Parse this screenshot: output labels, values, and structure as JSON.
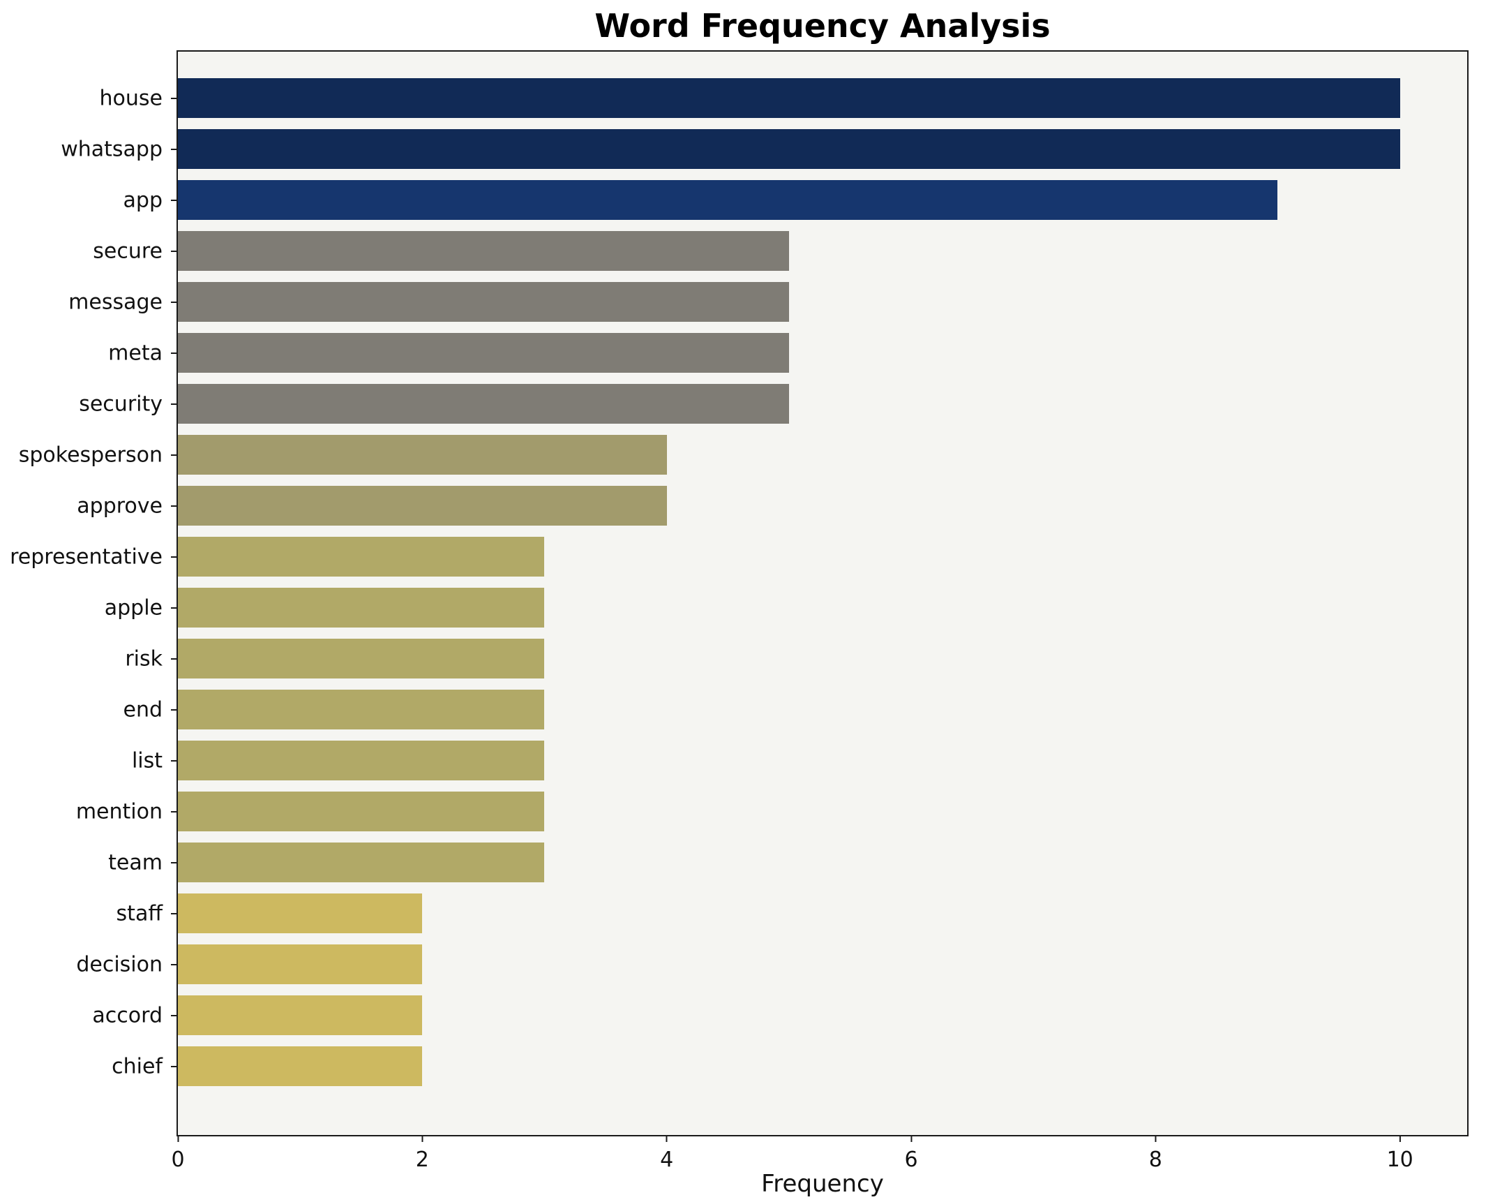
{
  "chart_data": {
    "type": "bar",
    "orientation": "horizontal",
    "title": "Word Frequency Analysis",
    "xlabel": "Frequency",
    "ylabel": "",
    "xlim": [
      0,
      10.55
    ],
    "xticks": [
      0,
      2,
      4,
      6,
      8,
      10
    ],
    "grid": false,
    "legend": false,
    "plot_background": "#f5f5f2",
    "categories": [
      "house",
      "whatsapp",
      "app",
      "secure",
      "message",
      "meta",
      "security",
      "spokesperson",
      "approve",
      "representative",
      "apple",
      "risk",
      "end",
      "list",
      "mention",
      "team",
      "staff",
      "decision",
      "accord",
      "chief"
    ],
    "values": [
      10,
      10,
      9,
      5,
      5,
      5,
      5,
      4,
      4,
      3,
      3,
      3,
      3,
      3,
      3,
      3,
      2,
      2,
      2,
      2
    ],
    "colors": [
      "#112a56",
      "#112a56",
      "#16366e",
      "#7f7c75",
      "#7f7c75",
      "#7f7c75",
      "#7f7c75",
      "#a29b6c",
      "#a29b6c",
      "#b1a967",
      "#b1a967",
      "#b1a967",
      "#b1a967",
      "#b1a967",
      "#b1a967",
      "#b1a967",
      "#cdb960",
      "#cdb960",
      "#cdb960",
      "#cdb960"
    ]
  }
}
